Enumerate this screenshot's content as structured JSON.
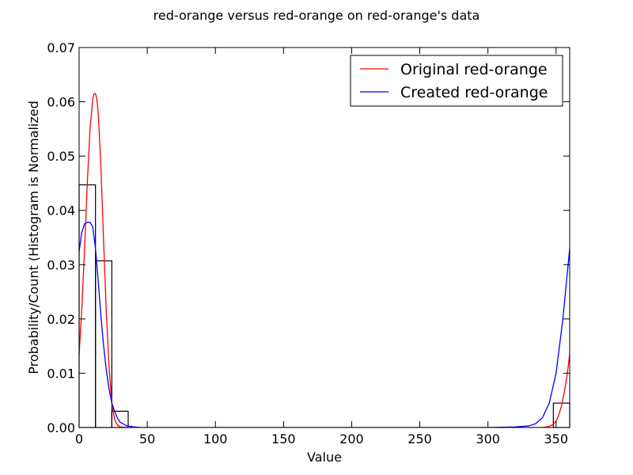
{
  "chart_data": {
    "type": "line",
    "title": "red-orange versus red-orange on red-orange's data",
    "xlabel": "Value",
    "ylabel": "Probability/Count (Histogram is Normalized",
    "xlim": [
      0,
      360
    ],
    "ylim": [
      0,
      0.07
    ],
    "x_ticks": [
      0,
      50,
      100,
      150,
      200,
      250,
      300,
      350
    ],
    "y_ticks": [
      0.0,
      0.01,
      0.02,
      0.03,
      0.04,
      0.05,
      0.06,
      0.07
    ],
    "x_tick_labels": [
      "0",
      "50",
      "100",
      "150",
      "200",
      "250",
      "300",
      "350"
    ],
    "y_tick_labels": [
      "0.00",
      "0.01",
      "0.02",
      "0.03",
      "0.04",
      "0.05",
      "0.06",
      "0.07"
    ],
    "grid": false,
    "legend_position": "top-right",
    "histogram": {
      "bins": [
        {
          "x0": 0,
          "x1": 12,
          "height": 0.0447
        },
        {
          "x0": 12,
          "x1": 24,
          "height": 0.0307
        },
        {
          "x0": 24,
          "x1": 36,
          "height": 0.003
        },
        {
          "x0": 348,
          "x1": 360,
          "height": 0.0045
        }
      ],
      "edge_color": "#000000"
    },
    "series": [
      {
        "name": "Original red-orange",
        "color": "#ff0000",
        "x": [
          0,
          2,
          4,
          6,
          8,
          10,
          11,
          12,
          13,
          14,
          16,
          18,
          20,
          22,
          24,
          26,
          28,
          30,
          35,
          40,
          50,
          100,
          200,
          300,
          330,
          340,
          345,
          348,
          350,
          352,
          354,
          356,
          358,
          360
        ],
        "y": [
          0.0135,
          0.022,
          0.033,
          0.045,
          0.055,
          0.0605,
          0.0615,
          0.0615,
          0.0605,
          0.058,
          0.048,
          0.034,
          0.021,
          0.011,
          0.0045,
          0.0015,
          0.0005,
          0.0001,
          0.0,
          0.0,
          0.0,
          0.0,
          0.0,
          0.0,
          0.0,
          0.0,
          0.0002,
          0.0006,
          0.0012,
          0.0023,
          0.004,
          0.0065,
          0.0095,
          0.0135
        ]
      },
      {
        "name": "Created red-orange",
        "color": "#0000ff",
        "x": [
          0,
          2,
          4,
          6,
          8,
          10,
          12,
          14,
          16,
          18,
          20,
          22,
          24,
          26,
          28,
          30,
          35,
          40,
          45,
          50,
          55,
          60,
          100,
          200,
          300,
          320,
          330,
          335,
          340,
          345,
          350,
          355,
          360
        ],
        "y": [
          0.0325,
          0.036,
          0.0375,
          0.0378,
          0.0378,
          0.037,
          0.033,
          0.027,
          0.0205,
          0.015,
          0.0105,
          0.007,
          0.0045,
          0.003,
          0.0018,
          0.001,
          0.0003,
          0.0001,
          0.0,
          0.0,
          0.0,
          0.0,
          0.0,
          0.0,
          0.0,
          0.0001,
          0.0003,
          0.0007,
          0.0018,
          0.0045,
          0.01,
          0.02,
          0.033
        ]
      }
    ]
  }
}
